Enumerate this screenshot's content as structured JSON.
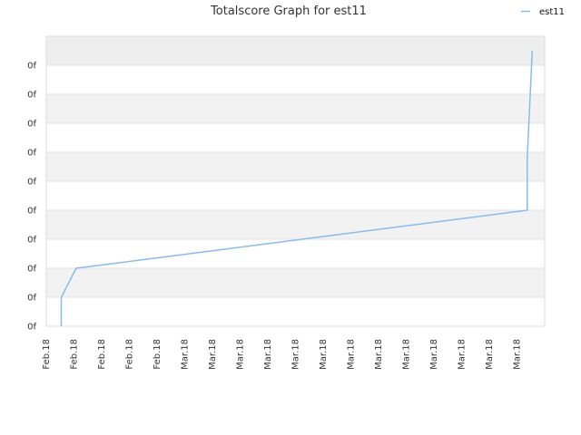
{
  "chart_data": {
    "type": "line",
    "title": "Totalscore Graph for est11",
    "xlabel": "",
    "ylabel": "",
    "y_tick_labels": [
      "0f",
      "0f",
      "0f",
      "0f",
      "0f",
      "0f",
      "0f",
      "0f",
      "0f",
      "0f"
    ],
    "x_tick_labels": [
      "Feb.18",
      "Feb.18",
      "Feb.18",
      "Feb.18",
      "Feb.18",
      "Mar.18",
      "Mar.18",
      "Mar.18",
      "Mar.18",
      "Mar.18",
      "Mar.18",
      "Mar.18",
      "Mar.18",
      "Mar.18",
      "Mar.18",
      "Mar.18",
      "Mar.18",
      "Mar.18"
    ],
    "series": [
      {
        "name": "est11",
        "color": "#88bbee",
        "points": [
          {
            "x": 0.03,
            "y": 0
          },
          {
            "x": 0.03,
            "y": 0.1
          },
          {
            "x": 0.06,
            "y": 0.2
          },
          {
            "x": 0.965,
            "y": 0.4
          },
          {
            "x": 0.965,
            "y": 0.58
          },
          {
            "x": 0.975,
            "y": 0.95
          }
        ]
      }
    ],
    "ylim": [
      0,
      1
    ],
    "xlim": [
      0,
      1
    ],
    "grid": true,
    "band_colors": [
      "#eeeeee",
      "#ffffff",
      "#f2f2f2"
    ],
    "legend_position": "top-right"
  }
}
